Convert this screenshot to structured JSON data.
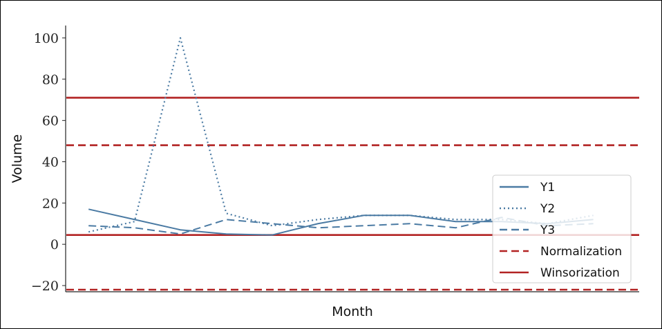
{
  "chart_data": {
    "type": "line",
    "xlabel": "Month",
    "ylabel": "Volume",
    "ylim": [
      -23,
      106
    ],
    "yticks": [
      -20,
      0,
      20,
      40,
      60,
      80,
      100
    ],
    "ytick_labels": [
      "−20",
      "0",
      "20",
      "40",
      "60",
      "80",
      "100"
    ],
    "x": [
      1,
      2,
      3,
      4,
      5,
      6,
      7,
      8,
      9,
      10,
      11,
      12
    ],
    "xlim": [
      0.5,
      13.0
    ],
    "series": [
      {
        "name": "Y1",
        "style": "solid",
        "color": "#4a7aa3",
        "values": [
          17,
          12,
          7,
          5,
          4.5,
          10,
          14,
          14,
          11,
          11,
          10,
          12
        ]
      },
      {
        "name": "Y2",
        "style": "dotted",
        "color": "#4a7aa3",
        "values": [
          6,
          11,
          100,
          15,
          9,
          12,
          14,
          14,
          12,
          12,
          10,
          14
        ]
      },
      {
        "name": "Y3",
        "style": "dashed",
        "color": "#4a7aa3",
        "values": [
          9,
          8,
          5,
          12,
          10,
          8,
          9,
          10,
          8,
          13,
          9,
          10
        ]
      }
    ],
    "reference_lines": [
      {
        "name": "Normalization",
        "style": "dashed",
        "color": "#b22222",
        "values": [
          48,
          -22
        ]
      },
      {
        "name": "Winsorization",
        "style": "solid",
        "color": "#b22222",
        "values": [
          71,
          4.5
        ]
      }
    ],
    "legend": {
      "position": "lower-right",
      "entries": [
        {
          "label": "Y1",
          "style": "solid",
          "color": "#4a7aa3"
        },
        {
          "label": "Y2",
          "style": "dotted",
          "color": "#4a7aa3"
        },
        {
          "label": "Y3",
          "style": "dashed",
          "color": "#4a7aa3"
        },
        {
          "label": "Normalization",
          "style": "dashed",
          "color": "#b22222"
        },
        {
          "label": "Winsorization",
          "style": "solid",
          "color": "#b22222"
        }
      ]
    },
    "grid": false
  }
}
